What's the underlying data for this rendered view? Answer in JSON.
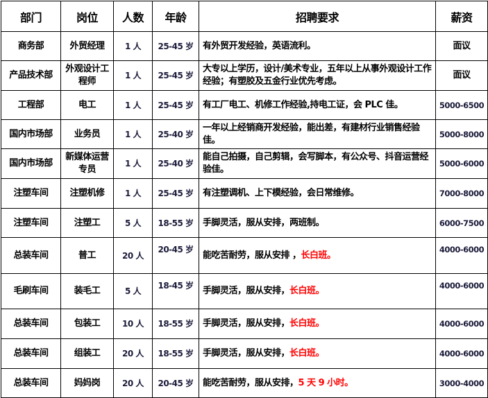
{
  "headers": [
    "部门",
    "岗位",
    "人数",
    "年龄",
    "招聘要求",
    "薪资"
  ],
  "highlight_color": "#ff0000",
  "rows": [
    {
      "dept": "商务部",
      "post": "外贸经理",
      "count": "1 人",
      "age": "25-45 岁",
      "req": "有外贸开发经验，英语流利。",
      "req_red": "",
      "salary": "面议"
    },
    {
      "dept": "产品技术部",
      "post": "外观设计工程师",
      "count": "1 人",
      "age": "25-45 岁",
      "req": "大专以上学历，设计/美术专业，五年以上从事外观设计工作经验；有塑胶及五金行业优先考虑。",
      "req_red": "",
      "salary": "面议"
    },
    {
      "dept": "工程部",
      "post": "电工",
      "count": "1 人",
      "age": "25-45 岁",
      "req": "有工厂电工、机修工作经验,持电工证，会 PLC 佳。",
      "req_red": "",
      "salary": "5000-6500"
    },
    {
      "dept": "国内市场部",
      "post": "业务员",
      "count": "1 人",
      "age": "25-40 岁",
      "req": "一年以上经销商开发经验，能出差，有建材行业销售经验佳。",
      "req_red": "",
      "salary": "5000-8000"
    },
    {
      "dept": "国内市场部",
      "post": "新媒体运营专员",
      "count": "1 人",
      "age": "25-40 岁",
      "req": "能自己拍摄，自己剪辑，会写脚本，有公众号、抖音运营经验佳。",
      "req_red": "",
      "salary": "5000-6000"
    },
    {
      "dept": "注塑车间",
      "post": "注塑机修",
      "count": "1 人",
      "age": "25-45 岁",
      "req": "有注塑调机、上下模经验，会日常维修。",
      "req_red": "",
      "salary": "7000-8000"
    },
    {
      "dept": "注塑车间",
      "post": "注塑工",
      "count": "5 人",
      "age": "18-55 岁",
      "req": "手脚灵活，服从安排，两班制。",
      "req_red": "",
      "salary": "6000-7500"
    },
    {
      "dept": "总装车间",
      "post": "普工",
      "count": "20 人",
      "age": "20-45 岁",
      "req": "能吃苦耐劳，服从安排 ，",
      "req_red": "长白班。",
      "salary": "4000-6000"
    },
    {
      "dept": "毛刷车间",
      "post": "装毛工",
      "count": "5 人",
      "age": "18-45 岁",
      "req": "手脚灵活，服从安排，",
      "req_red": "长白班。",
      "salary": "4000-6000"
    },
    {
      "dept": "总装车间",
      "post": "包装工",
      "count": "10 人",
      "age": "18-55 岁",
      "req": "手脚灵活，服从安排，",
      "req_red": "长白班。",
      "salary": "4000-6000"
    },
    {
      "dept": "总装车间",
      "post": "组装工",
      "count": "20 人",
      "age": "18-55 岁",
      "req": "手脚灵活，服从安排，",
      "req_red": "长白班。",
      "salary": "4000-6000"
    },
    {
      "dept": "总装车间",
      "post": "妈妈岗",
      "count": "20 人",
      "age": "20-45 岁",
      "req": "能吃苦耐劳，服从安排，",
      "req_red": "5 天 9 小时。",
      "salary": "3000-4000"
    }
  ]
}
